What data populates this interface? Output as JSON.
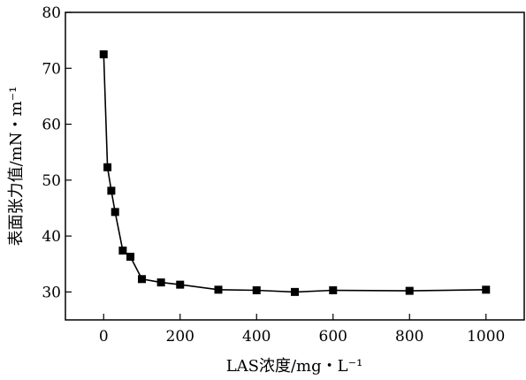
{
  "chart_data": {
    "type": "line",
    "xlabel": "LAS浓度/mg・L⁻¹",
    "ylabel": "表面张力值/mN・m⁻¹",
    "xlim": [
      -100,
      1100
    ],
    "ylim": [
      25,
      80
    ],
    "x_ticks": [
      0,
      200,
      400,
      600,
      800,
      1000
    ],
    "y_ticks": [
      30,
      40,
      50,
      60,
      70,
      80
    ],
    "grid": false,
    "series": [
      {
        "marker": "square",
        "color": "#000000",
        "x": [
          0,
          10,
          20,
          30,
          50,
          70,
          100,
          150,
          200,
          300,
          400,
          500,
          600,
          800,
          1000
        ],
        "y": [
          72.5,
          52.3,
          48.1,
          44.3,
          37.4,
          36.3,
          32.3,
          31.7,
          31.3,
          30.4,
          30.3,
          30.0,
          30.3,
          30.2,
          30.4
        ]
      }
    ]
  }
}
